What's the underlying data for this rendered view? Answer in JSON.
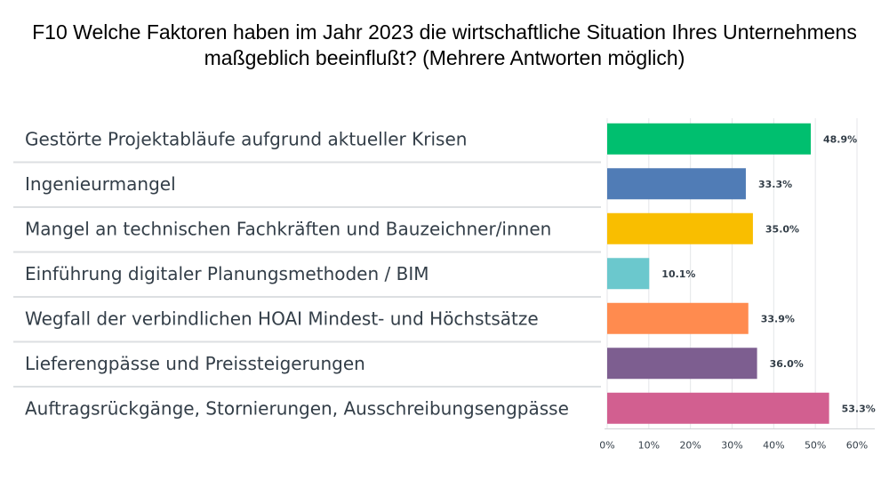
{
  "title_line1": "F10 Welche Faktoren haben im Jahr 2023 die wirtschaftliche Situation Ihres Unternehmens",
  "title_line2": "maßgeblich beeinflußt? (Mehrere Antworten möglich)",
  "chart_data": {
    "type": "bar",
    "orientation": "horizontal",
    "title": "F10 Welche Faktoren haben im Jahr 2023 die wirtschaftliche Situation Ihres Unternehmens maßgeblich beeinflußt? (Mehrere Antworten möglich)",
    "categories": [
      "Gestörte Projektabläufe aufgrund aktueller Krisen",
      "Ingenieurmangel",
      "Mangel an technischen Fachkräften und Bauzeichner/innen",
      "Einführung digitaler Planungsmethoden / BIM",
      "Wegfall der verbindlichen HOAI Mindest- und Höchstsätze",
      "Lieferengpässe und Preissteigerungen",
      "Auftragsrückgänge, Stornierungen, Ausschreibungsengpässe"
    ],
    "values": [
      48.9,
      33.3,
      35.0,
      10.1,
      33.9,
      36.0,
      53.3
    ],
    "value_labels": [
      "48.9%",
      "33.3%",
      "35.0%",
      "10.1%",
      "33.9%",
      "36.0%",
      "53.3%"
    ],
    "colors": [
      "#00bf6f",
      "#507cb6",
      "#f9be00",
      "#6bc8cd",
      "#ff8b4f",
      "#7d5e90",
      "#d25f90"
    ],
    "xlim": [
      0,
      60
    ],
    "x_ticks": [
      0,
      10,
      20,
      30,
      40,
      50,
      60
    ],
    "x_tick_labels": [
      "0%",
      "10%",
      "20%",
      "30%",
      "40%",
      "50%",
      "60%"
    ],
    "grid": true,
    "legend": "none"
  }
}
